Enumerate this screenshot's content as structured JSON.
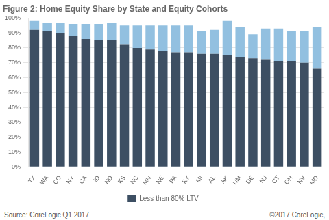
{
  "chart_data": {
    "type": "bar",
    "title": "Figure 2: Home Equity Share by State and Equity Cohorts",
    "categories": [
      "TX",
      "WA",
      "CO",
      "NY",
      "CA",
      "ID",
      "ND",
      "KS",
      "NC",
      "MN",
      "NE",
      "PA",
      "KY",
      "MI",
      "AL",
      "AK",
      "NM",
      "DE",
      "NJ",
      "CT",
      "OH",
      "NV",
      "MD"
    ],
    "series": [
      {
        "name": "Less than 80% LTV",
        "color": "#3d4f63",
        "values": [
          92,
          91,
          90,
          88,
          86,
          85,
          85,
          82,
          80,
          79,
          78,
          77,
          77,
          76,
          76,
          75,
          74,
          73,
          72,
          71,
          71,
          70,
          66
        ]
      },
      {
        "color": "#92c0e0",
        "values": [
          6,
          6,
          7,
          8,
          10,
          11,
          12,
          13,
          15,
          16,
          17,
          18,
          18,
          15,
          16,
          23,
          20,
          16,
          21,
          22,
          20,
          21,
          28
        ]
      }
    ],
    "stacked": true,
    "ylim": [
      0,
      100
    ],
    "yticks": [
      {
        "value": 0,
        "label": "0%"
      },
      {
        "value": 10,
        "label": "10%"
      },
      {
        "value": 20,
        "label": "20%"
      },
      {
        "value": 30,
        "label": "30%"
      },
      {
        "value": 40,
        "label": "40%"
      },
      {
        "value": 50,
        "label": "50%"
      },
      {
        "value": 60,
        "label": "60%"
      },
      {
        "value": 70,
        "label": "70%"
      },
      {
        "value": 80,
        "label": "80%"
      },
      {
        "value": 90,
        "label": "90%"
      },
      {
        "value": 100,
        "label": "100%"
      }
    ],
    "grid": true,
    "legend": "bottom",
    "annotations": [
      "Source: CoreLogic Q1 2017",
      "©2017 CoreLogic,"
    ]
  }
}
